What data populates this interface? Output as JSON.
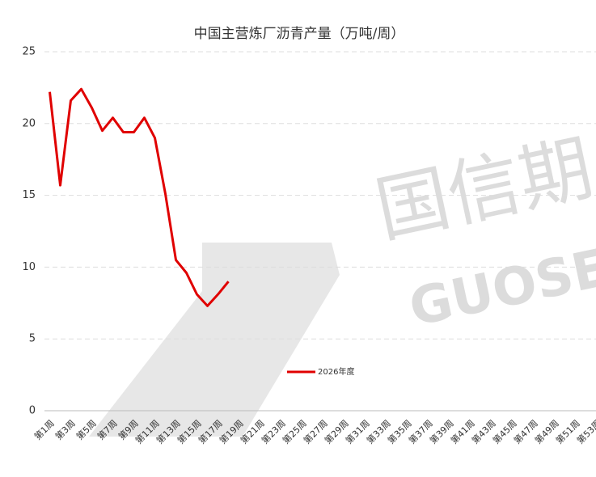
{
  "chart_data": {
    "type": "line",
    "title": "中国主营炼厂沥青产量（万吨/周）",
    "categories": [
      "第1周",
      null,
      "第3周",
      null,
      "第5周",
      null,
      "第7周",
      null,
      "第9周",
      null,
      "第11周",
      null,
      "第13周",
      null,
      "第15周",
      null,
      "第17周",
      null,
      "第19周",
      null,
      "第21周",
      null,
      "第23周",
      null,
      "第25周",
      null,
      "第27周",
      null,
      "第29周",
      null,
      "第31周",
      null,
      "第33周",
      null,
      "第35周",
      null,
      "第37周",
      null,
      "第39周",
      null,
      "第41周",
      null,
      "第43周",
      null,
      "第45周",
      null,
      "第47周",
      null,
      "第49周",
      null,
      "第51周",
      null,
      "第53周"
    ],
    "series": [
      {
        "name": "2026年度",
        "color": "#e00000",
        "values": [
          22.2,
          15.7,
          21.6,
          22.4,
          21.1,
          19.5,
          20.4,
          19.4,
          19.4,
          20.4,
          19.0,
          15.1,
          10.5,
          9.6,
          8.1,
          7.3,
          8.1,
          9.0,
          null,
          null,
          null,
          null,
          null,
          null,
          null,
          null,
          null,
          null,
          null,
          null,
          null,
          null,
          null,
          null,
          null,
          null,
          null,
          null,
          null,
          null,
          null,
          null,
          null,
          null,
          null,
          null,
          null,
          null,
          null,
          null,
          null,
          null,
          null
        ]
      }
    ],
    "ylim": [
      0,
      25
    ],
    "yticks": [
      0,
      5,
      10,
      15,
      20,
      25
    ],
    "grid": true,
    "watermark": [
      "国信期",
      "GUOSE"
    ]
  }
}
